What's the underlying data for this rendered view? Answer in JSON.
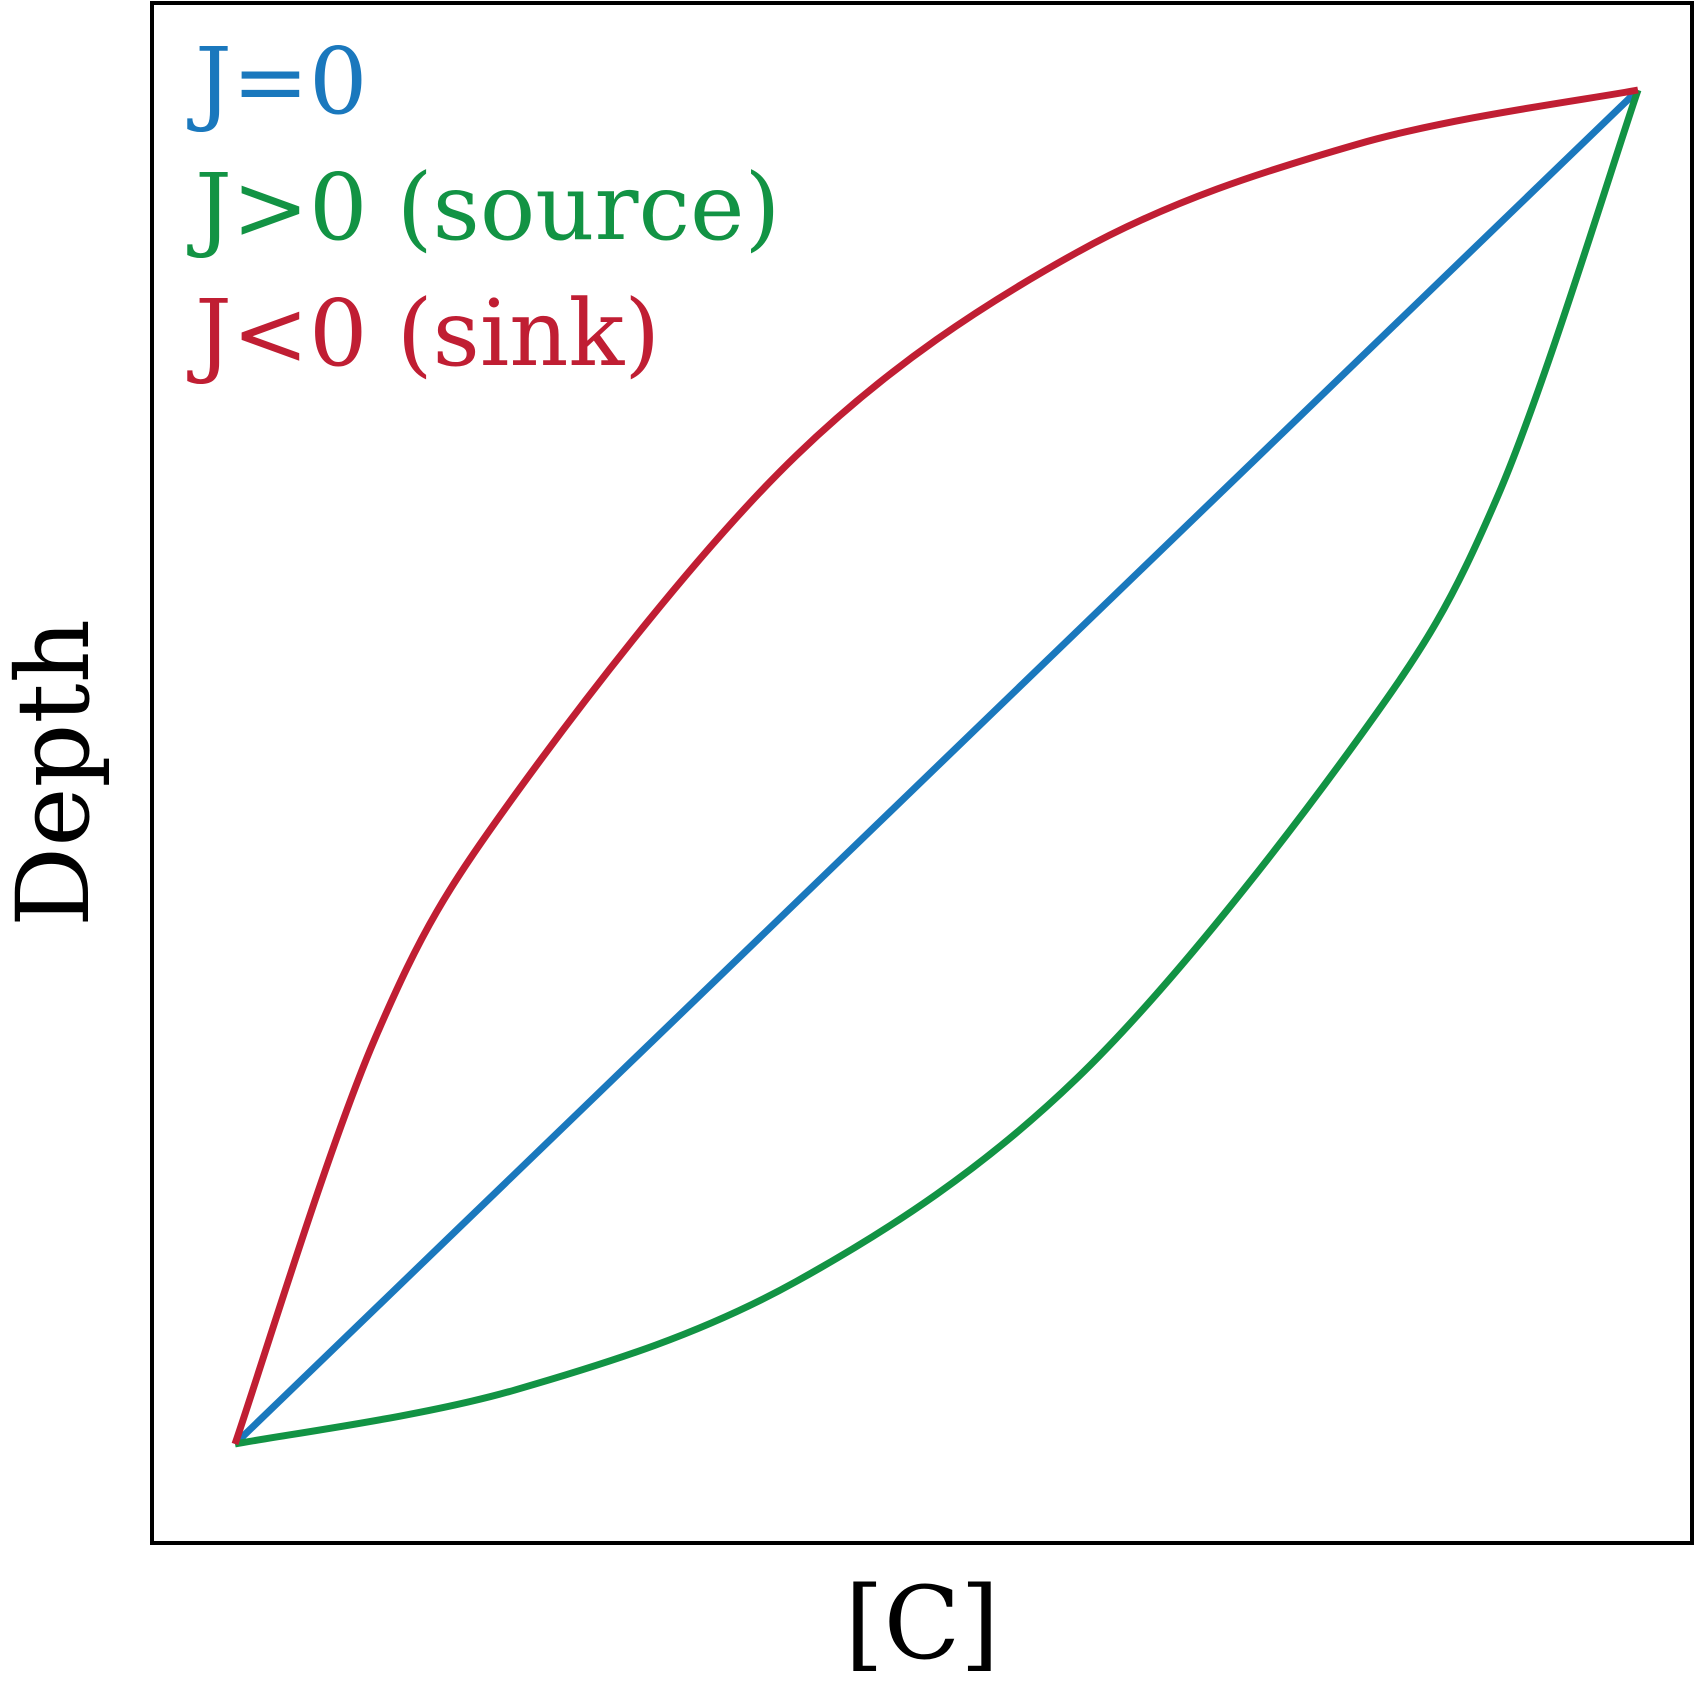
{
  "chart_data": {
    "type": "line",
    "title": "",
    "xlabel": "[C]",
    "ylabel": "Depth",
    "x_ticks": [],
    "y_ticks": [],
    "grid": false,
    "legend_placement": "top-left",
    "series": [
      {
        "name": "J=0",
        "color": "#1a78bd",
        "x": [
          0.0,
          0.25,
          0.5,
          0.75,
          1.0
        ],
        "y": [
          0.0,
          0.25,
          0.5,
          0.75,
          1.0
        ]
      },
      {
        "name": "J>0 (source)",
        "color": "#129344",
        "x": [
          0.0,
          0.2,
          0.4,
          0.6,
          0.8,
          0.9,
          1.0
        ],
        "y": [
          0.0,
          0.04,
          0.12,
          0.27,
          0.52,
          0.7,
          1.0
        ]
      },
      {
        "name": "J<0 (sink)",
        "color": "#c01e33",
        "x": [
          0.0,
          0.1,
          0.2,
          0.4,
          0.6,
          0.8,
          1.0
        ],
        "y": [
          0.0,
          0.3,
          0.48,
          0.73,
          0.88,
          0.96,
          1.0
        ]
      }
    ]
  }
}
